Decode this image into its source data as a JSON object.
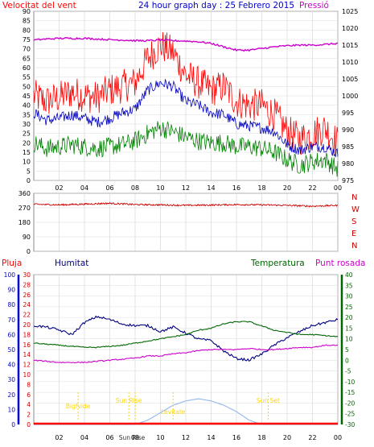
{
  "header": {
    "left_label": "Velocitat del vent",
    "title": "24 hour graph day : 25 Febrero 2015",
    "right_label": "Pressió"
  },
  "lower_header": {
    "rain_label": "Pluja",
    "humidity_label": "Humitat",
    "temperature_label": "Temperatura",
    "dewpoint_label": "Punt rosada"
  },
  "colors": {
    "wind_gust": "#ff0000",
    "wind_avg": "#0000c0",
    "wind_low": "#008000",
    "pressure": "#cc00cc",
    "direction": "#cc0000",
    "humidity": "#000080",
    "temperature": "#006600",
    "dewpoint": "#cc00cc",
    "solar": "#99bbee",
    "annotation": "#ffd700"
  },
  "chart_data": [
    {
      "type": "line",
      "title": "24 hour graph day : 25 Febrero 2015",
      "x_tick_labels": [
        "02",
        "04",
        "06",
        "08",
        "10",
        "12",
        "14",
        "16",
        "18",
        "20",
        "22",
        "00"
      ],
      "y_left_ticks": [
        0,
        5,
        10,
        15,
        20,
        25,
        30,
        35,
        40,
        45,
        50,
        55,
        60,
        65,
        70,
        75,
        80,
        85,
        90
      ],
      "y_right_ticks": [
        975,
        980,
        985,
        990,
        995,
        1000,
        1005,
        1010,
        1015,
        1020,
        1025
      ],
      "ylim_left": [
        0,
        90
      ],
      "ylim_right": [
        975,
        1025
      ],
      "x_hours": [
        0,
        1,
        2,
        3,
        4,
        5,
        6,
        7,
        8,
        9,
        10,
        11,
        12,
        13,
        14,
        15,
        16,
        17,
        18,
        19,
        20,
        21,
        22,
        23,
        24
      ],
      "series": [
        {
          "name": "Velocitat del vent",
          "axis": "left",
          "values": [
            45,
            42,
            44,
            47,
            45,
            44,
            48,
            50,
            52,
            65,
            72,
            68,
            56,
            52,
            48,
            50,
            42,
            40,
            40,
            35,
            26,
            22,
            25,
            28,
            20
          ]
        },
        {
          "name": "",
          "axis": "left",
          "values": [
            36,
            32,
            33,
            35,
            33,
            31,
            33,
            36,
            38,
            48,
            52,
            50,
            42,
            40,
            36,
            35,
            30,
            29,
            28,
            26,
            19,
            16,
            18,
            18,
            14
          ]
        },
        {
          "name": "",
          "axis": "left",
          "values": [
            20,
            17,
            18,
            19,
            18,
            17,
            18,
            19,
            21,
            25,
            28,
            26,
            23,
            21,
            20,
            20,
            18,
            18,
            17,
            15,
            11,
            8,
            10,
            11,
            6
          ]
        },
        {
          "name": "Pressió",
          "axis": "right",
          "values": [
            1016.5,
            1016.8,
            1017,
            1017,
            1017,
            1016.8,
            1016.6,
            1016.5,
            1016.3,
            1016.3,
            1016.5,
            1016.3,
            1016.2,
            1016,
            1015.5,
            1014.5,
            1013.5,
            1013.5,
            1014,
            1014.5,
            1014.8,
            1015,
            1015,
            1015.2,
            1015.5
          ]
        }
      ]
    },
    {
      "type": "line",
      "y_left_ticks": [
        0,
        90,
        180,
        270,
        360
      ],
      "compass_labels": [
        "N",
        "W",
        "S",
        "E",
        "N"
      ],
      "ylim": [
        0,
        360
      ],
      "x_hours": [
        0,
        2,
        4,
        6,
        8,
        10,
        12,
        14,
        16,
        18,
        20,
        22,
        24
      ],
      "series": [
        {
          "name": "",
          "values": [
            292,
            288,
            293,
            298,
            290,
            288,
            285,
            287,
            290,
            288,
            285,
            280,
            285
          ]
        }
      ]
    },
    {
      "type": "line",
      "left_axis_humidity": [
        0,
        10,
        20,
        30,
        40,
        50,
        60,
        70,
        80,
        90,
        100
      ],
      "left_axis_rain": [
        0,
        2,
        4,
        6,
        8,
        10,
        12,
        14,
        16,
        18,
        20,
        22,
        24,
        26,
        28,
        30
      ],
      "right_axis_temperature": [
        -30,
        -25,
        -20,
        -15,
        -10,
        -5,
        0,
        5,
        10,
        15,
        20,
        25,
        30,
        35,
        40
      ],
      "ylim_humidity": [
        0,
        100
      ],
      "ylim_rain": [
        0,
        30
      ],
      "ylim_temperature": [
        -30,
        40
      ],
      "x_hours": [
        0,
        1,
        2,
        3,
        4,
        5,
        6,
        7,
        8,
        9,
        10,
        11,
        12,
        13,
        14,
        15,
        16,
        17,
        18,
        19,
        20,
        21,
        22,
        23,
        24
      ],
      "series": [
        {
          "name": "Humitat",
          "axis": "humidity",
          "values": [
            66,
            65,
            63,
            60,
            68,
            72,
            70,
            67,
            66,
            66,
            62,
            65,
            61,
            57,
            56,
            49,
            44,
            43,
            47,
            53,
            58,
            62,
            66,
            68,
            70
          ]
        },
        {
          "name": "Temperatura",
          "axis": "temperature",
          "values": [
            8,
            7.5,
            7,
            6.5,
            6,
            6,
            6.5,
            7,
            8,
            9,
            10,
            11,
            12,
            14,
            15,
            17,
            18,
            18,
            16,
            14,
            13,
            12,
            12,
            11.5,
            11
          ]
        },
        {
          "name": "Punt rosada",
          "axis": "temperature",
          "values": [
            0,
            -0.5,
            -1,
            -1,
            -1,
            -0.5,
            0,
            0.5,
            1,
            2,
            2,
            3,
            3.5,
            4.5,
            5,
            5,
            5,
            5.5,
            5,
            5,
            5.5,
            6,
            6,
            7,
            7
          ]
        },
        {
          "name": "",
          "axis": "temperature",
          "shape": "solar",
          "values": [
            -30,
            -30,
            -30,
            -30,
            -30,
            -30,
            -30,
            -30,
            -30,
            -28,
            -24.5,
            -21,
            -19,
            -18,
            -19,
            -21,
            -24,
            -28,
            -30,
            -30,
            -30,
            -30,
            -30,
            -30,
            -30
          ]
        }
      ],
      "annotations": [
        {
          "label": "Bigfvide",
          "hour": 3.5
        },
        {
          "label": "Sun Rise",
          "hour": 7.5
        },
        {
          "label": "Sun Rise",
          "hour": 8.0
        },
        {
          "label": "Levitate",
          "hour": 11.0
        },
        {
          "label": "Sun Set",
          "hour": 18.5
        }
      ]
    }
  ]
}
